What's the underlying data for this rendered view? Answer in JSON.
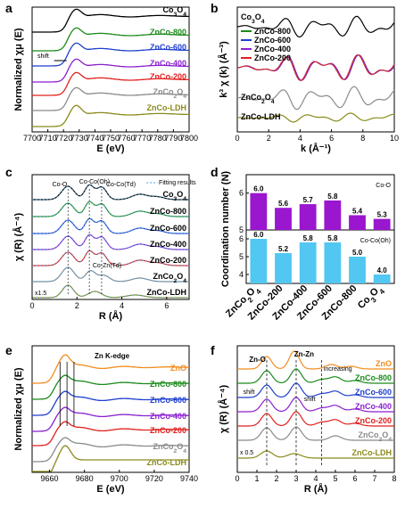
{
  "panels": [
    {
      "id": "a",
      "label": "a",
      "xlabel": "E (eV)",
      "ylabel": "Normalized χμ (E)",
      "xticks": [
        "7700",
        "7710",
        "7720",
        "7730",
        "7740",
        "7750",
        "7760",
        "7770",
        "7780",
        "7790",
        "7800"
      ],
      "xlim": [
        7700,
        7800
      ],
      "series": [
        "Co3O4",
        "ZnCo-800",
        "ZnCo-600",
        "ZnCo-400",
        "ZnCo-200",
        "ZnCo2O4",
        "ZnCo-LDH"
      ],
      "annotations": [
        "shift"
      ]
    },
    {
      "id": "b",
      "label": "b",
      "xlabel": "k (Å⁻¹)",
      "ylabel": "k³ χ (k) (Å⁻³)",
      "xticks": [
        "0",
        "2",
        "4",
        "6",
        "8",
        "10"
      ],
      "xlim": [
        0,
        10
      ],
      "series": [
        "Co3O4",
        "ZnCo-800",
        "ZnCo-600",
        "ZnCo-400",
        "ZnCo-200",
        "ZnCo2O4",
        "ZnCo-LDH"
      ]
    },
    {
      "id": "c",
      "label": "c",
      "xlabel": "R (Å)",
      "ylabel": "χ (R) (Å⁻⁴)",
      "xticks": [
        "0",
        "2",
        "4",
        "6"
      ],
      "xlim": [
        0,
        7
      ],
      "series": [
        "Co3O4",
        "ZnCo-800",
        "ZnCo-600",
        "ZnCo-400",
        "ZnCo-200",
        "ZnCo2O4",
        "ZnCo-LDH"
      ],
      "annotations": [
        "Co-O",
        "Co-Co(Oh)",
        "Co-Co(Td)",
        "Co-Zn(Td)",
        "x1.5",
        "Fitting results"
      ]
    },
    {
      "id": "d",
      "label": "d",
      "ylabel": "Coordination number (N)",
      "annotations": [
        "Co-O",
        "Co-Co(Oh)"
      ]
    },
    {
      "id": "e",
      "label": "e",
      "xlabel": "E (eV)",
      "ylabel": "Normalized χμ (E)",
      "xticks": [
        "9660",
        "9680",
        "9700",
        "9720",
        "9740"
      ],
      "xlim": [
        9650,
        9740
      ],
      "series": [
        "ZnO",
        "ZnCo-800",
        "ZnCo-600",
        "ZnCo-400",
        "ZnCo-200",
        "ZnCo2O4",
        "ZnCo-LDH"
      ],
      "annotations": [
        "Zn K-edge"
      ]
    },
    {
      "id": "f",
      "label": "f",
      "xlabel": "R (Å)",
      "ylabel": "χ (R) (Å⁻⁴)",
      "xticks": [
        "0",
        "1",
        "2",
        "3",
        "4",
        "5",
        "6",
        "7",
        "8"
      ],
      "xlim": [
        0,
        8
      ],
      "series": [
        "ZnO",
        "ZnCo-800",
        "ZnCo-600",
        "ZnCo-400",
        "ZnCo-200",
        "ZnCo2O4",
        "ZnCo-LDH"
      ],
      "annotations": [
        "Zn-O",
        "Zn-Zn",
        "increasing",
        "shift",
        "shift",
        "x 0.5"
      ]
    }
  ],
  "colors": {
    "Co3O4": "#000000",
    "ZnO": "#f28c1e",
    "ZnCo-800": "#1a8a1a",
    "ZnCo-600": "#1f3fcf",
    "ZnCo-400": "#8a1fcf",
    "ZnCo-200": "#e0201e",
    "ZnCo2O4": "#8a8a8a",
    "ZnCo-LDH": "#8a8a1a",
    "bar_top": "#9a16cf",
    "bar_bottom": "#52c7f2"
  },
  "chart_data": [
    {
      "panel": "d",
      "type": "bar",
      "title": "",
      "categories": [
        "ZnCo2O4",
        "ZnCo-200",
        "ZnCo-400",
        "ZnCo-600",
        "ZnCo-800",
        "Co3O4"
      ],
      "ylabel": "Coordination number (N)",
      "series": [
        {
          "name": "Co-O",
          "values": [
            6.0,
            5.6,
            5.7,
            5.8,
            5.4,
            5.3
          ],
          "ylim": [
            5,
            6.5
          ],
          "yticks": [
            "5",
            "6"
          ]
        },
        {
          "name": "Co-Co(Oh)",
          "values": [
            6.0,
            5.2,
            5.8,
            5.8,
            5.0,
            4.0
          ],
          "ylim": [
            3.5,
            6.5
          ],
          "yticks": [
            "4",
            "5",
            "6"
          ]
        }
      ]
    }
  ]
}
